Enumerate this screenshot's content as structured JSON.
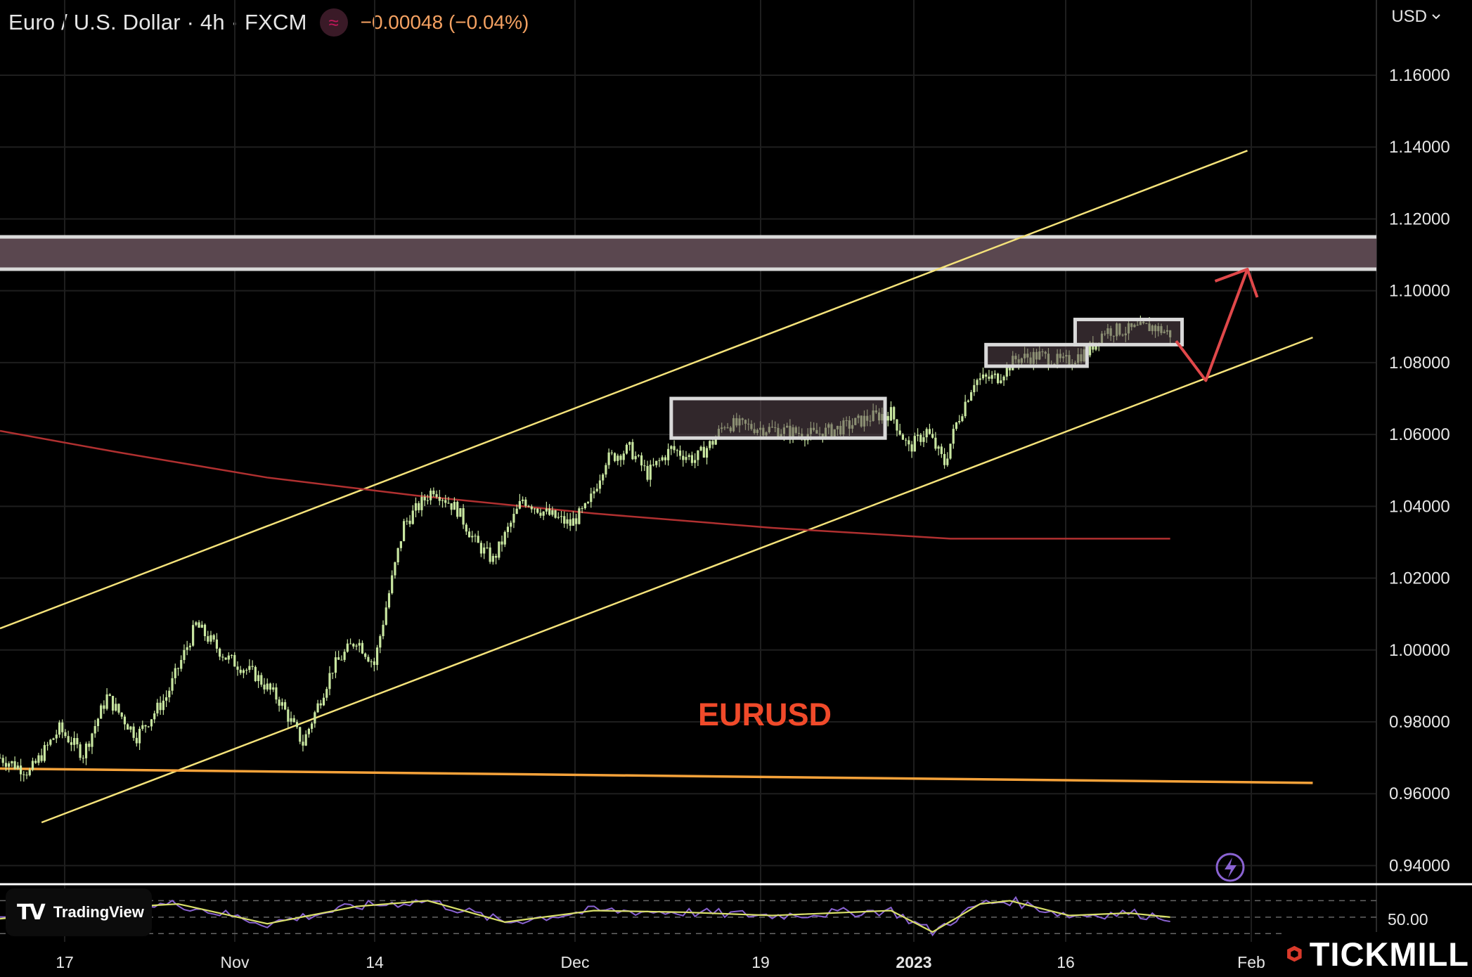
{
  "header": {
    "symbol": "Euro / U.S. Dollar · 4h · FXCM",
    "change": "−0.00048 (−0.04%)",
    "indicator_icon": "approx-icon"
  },
  "currency_selector": {
    "label": "USD",
    "icon": "chevron-down-icon"
  },
  "branding": {
    "tradingview": "TradingView",
    "broker": "TICKMILL"
  },
  "colors": {
    "background": "#000000",
    "candle": "#c8e6a0",
    "channel": "#f4e27a",
    "moving_average": "#b03030",
    "support_line": "#f5a23a",
    "zone_fill": "#5a474f",
    "zone_border": "#d9d9d9",
    "arrow": "#e0484a",
    "annotation_text": "#f04a2a",
    "rsi_line": "#8a63d2",
    "rsi_signal": "#d9e06a"
  },
  "chart_data": {
    "type": "candlestick",
    "instrument": "EURUSD",
    "timeframe": "4h",
    "annotation": "EURUSD",
    "x_tick_labels": [
      "17",
      "Nov",
      "14",
      "Dec",
      "19",
      "2023",
      "16",
      "Feb"
    ],
    "y_tick_labels": [
      "1.16000",
      "1.14000",
      "1.12000",
      "1.10000",
      "1.08000",
      "1.06000",
      "1.04000",
      "1.02000",
      "1.00000",
      "0.98000",
      "0.96000",
      "0.94000"
    ],
    "ylim": [
      0.935,
      1.17
    ],
    "price_path": [
      {
        "t": 0,
        "p": 0.97
      },
      {
        "t": 5,
        "p": 0.966
      },
      {
        "t": 10,
        "p": 0.978
      },
      {
        "t": 14,
        "p": 0.971
      },
      {
        "t": 18,
        "p": 0.987
      },
      {
        "t": 23,
        "p": 0.976
      },
      {
        "t": 28,
        "p": 0.987
      },
      {
        "t": 33,
        "p": 1.007
      },
      {
        "t": 38,
        "p": 0.998
      },
      {
        "t": 43,
        "p": 0.993
      },
      {
        "t": 47,
        "p": 0.986
      },
      {
        "t": 51,
        "p": 0.974
      },
      {
        "t": 56,
        "p": 0.995
      },
      {
        "t": 60,
        "p": 1.003
      },
      {
        "t": 63,
        "p": 0.996
      },
      {
        "t": 65,
        "p": 1.012
      },
      {
        "t": 68,
        "p": 1.035
      },
      {
        "t": 71,
        "p": 1.041
      },
      {
        "t": 73,
        "p": 1.045
      },
      {
        "t": 77,
        "p": 1.039
      },
      {
        "t": 80,
        "p": 1.03
      },
      {
        "t": 83,
        "p": 1.025
      },
      {
        "t": 88,
        "p": 1.042
      },
      {
        "t": 92,
        "p": 1.038
      },
      {
        "t": 96,
        "p": 1.035
      },
      {
        "t": 99,
        "p": 1.04
      },
      {
        "t": 102,
        "p": 1.053
      },
      {
        "t": 106,
        "p": 1.056
      },
      {
        "t": 109,
        "p": 1.049
      },
      {
        "t": 113,
        "p": 1.056
      },
      {
        "t": 117,
        "p": 1.053
      },
      {
        "t": 120,
        "p": 1.058
      },
      {
        "t": 122,
        "p": 1.063
      },
      {
        "t": 127,
        "p": 1.062
      },
      {
        "t": 132,
        "p": 1.061
      },
      {
        "t": 137,
        "p": 1.06
      },
      {
        "t": 142,
        "p": 1.062
      },
      {
        "t": 147,
        "p": 1.065
      },
      {
        "t": 150,
        "p": 1.066
      },
      {
        "t": 153,
        "p": 1.056
      },
      {
        "t": 156,
        "p": 1.061
      },
      {
        "t": 159,
        "p": 1.052
      },
      {
        "t": 161,
        "p": 1.063
      },
      {
        "t": 164,
        "p": 1.075
      },
      {
        "t": 168,
        "p": 1.076
      },
      {
        "t": 171,
        "p": 1.081
      },
      {
        "t": 175,
        "p": 1.082
      },
      {
        "t": 179,
        "p": 1.08
      },
      {
        "t": 183,
        "p": 1.083
      },
      {
        "t": 186,
        "p": 1.089
      },
      {
        "t": 190,
        "p": 1.089
      },
      {
        "t": 194,
        "p": 1.09
      },
      {
        "t": 197,
        "p": 1.088
      }
    ],
    "moving_average": [
      {
        "t": 0,
        "p": 1.061
      },
      {
        "t": 20,
        "p": 1.055
      },
      {
        "t": 45,
        "p": 1.048
      },
      {
        "t": 70,
        "p": 1.043
      },
      {
        "t": 100,
        "p": 1.038
      },
      {
        "t": 130,
        "p": 1.034
      },
      {
        "t": 160,
        "p": 1.031
      },
      {
        "t": 197,
        "p": 1.031
      }
    ],
    "channel_upper": [
      {
        "t": 0,
        "p": 1.006
      },
      {
        "t": 210,
        "p": 1.139
      }
    ],
    "channel_lower": [
      {
        "t": 7,
        "p": 0.952
      },
      {
        "t": 221,
        "p": 1.087
      }
    ],
    "support_line": [
      {
        "t": 0,
        "p": 0.967
      },
      {
        "t": 221,
        "p": 0.963
      }
    ],
    "resistance_zone": [
      1.106,
      1.115
    ],
    "consolidation_boxes": [
      {
        "t0": 113,
        "t1": 149,
        "low": 1.059,
        "high": 1.07
      },
      {
        "t0": 166,
        "t1": 183,
        "low": 1.079,
        "high": 1.085
      },
      {
        "t0": 181,
        "t1": 199,
        "low": 1.085,
        "high": 1.092
      }
    ],
    "projection_path": [
      {
        "t": 198,
        "p": 1.086
      },
      {
        "t": 203,
        "p": 1.075
      },
      {
        "t": 210,
        "p": 1.106
      }
    ],
    "rsi": {
      "last_label": "50.00",
      "path": [
        {
          "t": 0,
          "p": 48
        },
        {
          "t": 15,
          "p": 60
        },
        {
          "t": 30,
          "p": 66
        },
        {
          "t": 45,
          "p": 42
        },
        {
          "t": 60,
          "p": 63
        },
        {
          "t": 72,
          "p": 70
        },
        {
          "t": 85,
          "p": 44
        },
        {
          "t": 100,
          "p": 58
        },
        {
          "t": 115,
          "p": 56
        },
        {
          "t": 130,
          "p": 52
        },
        {
          "t": 150,
          "p": 58
        },
        {
          "t": 157,
          "p": 32
        },
        {
          "t": 165,
          "p": 66
        },
        {
          "t": 170,
          "p": 70
        },
        {
          "t": 180,
          "p": 52
        },
        {
          "t": 190,
          "p": 55
        },
        {
          "t": 197,
          "p": 50
        }
      ]
    }
  }
}
